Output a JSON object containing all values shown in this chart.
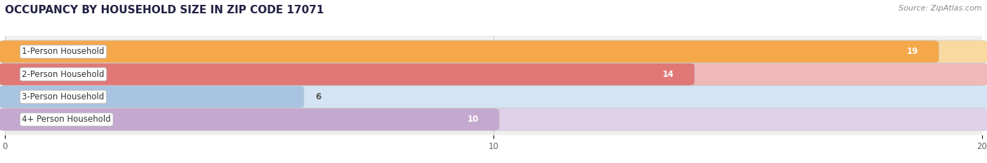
{
  "title": "OCCUPANCY BY HOUSEHOLD SIZE IN ZIP CODE 17071",
  "source": "Source: ZipAtlas.com",
  "categories": [
    "1-Person Household",
    "2-Person Household",
    "3-Person Household",
    "4+ Person Household"
  ],
  "values": [
    19,
    14,
    6,
    10
  ],
  "bar_colors": [
    "#F5A84A",
    "#E07878",
    "#A8C4E0",
    "#C4A8D0"
  ],
  "bar_bg_colors": [
    "#FAD9A0",
    "#F0B8B8",
    "#D4E4F4",
    "#E0D0E8"
  ],
  "xlim": [
    0,
    20
  ],
  "xmax": 20,
  "xticks": [
    0,
    10,
    20
  ],
  "background_color": "#ffffff",
  "plot_bg_color": "#efefef",
  "title_fontsize": 11,
  "label_fontsize": 8.5,
  "value_fontsize": 8.5,
  "source_fontsize": 8,
  "bar_height": 0.75,
  "title_color": "#222244",
  "label_color": "#333333",
  "value_color_inside": "#ffffff",
  "value_color_outside": "#555555",
  "tick_color": "#666666",
  "grid_color": "#cccccc",
  "label_box_color": "#ffffff",
  "label_box_edge": "#bbbbbb"
}
